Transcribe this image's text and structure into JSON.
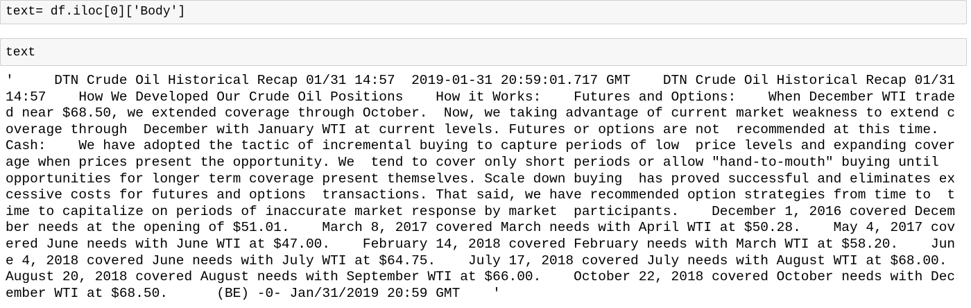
{
  "cells": [
    {
      "code": "text= df.iloc[0]['Body']"
    },
    {
      "code": "text"
    }
  ],
  "output": {
    "lines": [
      "'     DTN Crude Oil Historical Recap 01/31 14:57  2019-01-31 20:59:01.717 GMT    DTN Crude Oil Historical Recap 01/31",
      "14:57    How We Developed Our Crude Oil Positions    How it Works:    Futures and Options:    When December WTI trade",
      "d near $68.50, we extended coverage through October.  Now, we taking advantage of current market weakness to extend c",
      "overage through  December with January WTI at current levels. Futures or options are not  recommended at this time.",
      "Cash:    We have adopted the tactic of incremental buying to capture periods of low  price levels and expanding cover",
      "age when prices present the opportunity. We  tend to cover only short periods or allow \"hand-to-mouth\" buying until",
      "opportunities for longer term coverage present themselves. Scale down buying  has proved successful and eliminates ex",
      "cessive costs for futures and options  transactions. That said, we have recommended option strategies from time to  t",
      "ime to capitalize on periods of inaccurate market response by market  participants.    December 1, 2016 covered Decem",
      "ber needs at the opening of $51.01.    March 8, 2017 covered March needs with April WTI at $50.28.    May 4, 2017 cov",
      "ered June needs with June WTI at $47.00.    February 14, 2018 covered February needs with March WTI at $58.20.    Jun",
      "e 4, 2018 covered June needs with July WTI at $64.75.    July 17, 2018 covered July needs with August WTI at $68.00.",
      "August 20, 2018 covered August needs with September WTI at $66.00.    October 22, 2018 covered October needs with Dec",
      "ember WTI at $68.50.      (BE) -0- Jan/31/2019 20:59 GMT    '"
    ]
  }
}
